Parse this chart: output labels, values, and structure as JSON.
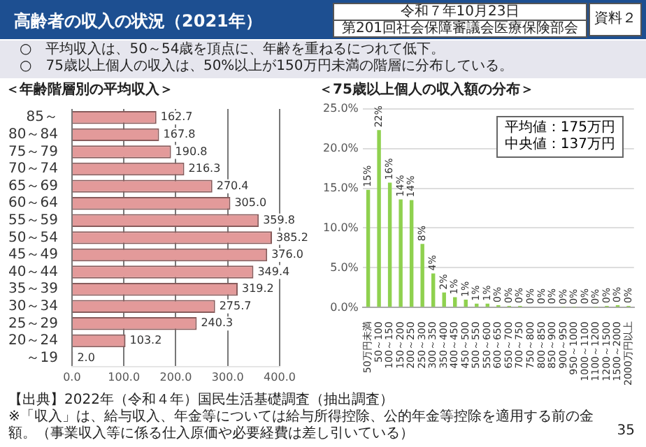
{
  "chart_data": [
    {
      "type": "bar",
      "orientation": "horizontal",
      "title": "＜年齢階層別の平均収入＞",
      "categories": [
        "85～",
        "80～84",
        "75～79",
        "70～74",
        "65～69",
        "60～64",
        "55～59",
        "50～54",
        "45～49",
        "40～44",
        "35～39",
        "30～34",
        "25～29",
        "20～24",
        "～19"
      ],
      "values": [
        162.7,
        167.8,
        190.8,
        216.3,
        270.4,
        305.0,
        359.8,
        385.2,
        376.0,
        349.4,
        319.2,
        275.7,
        240.3,
        103.2,
        2.0
      ],
      "value_labels": [
        "162.7",
        "167.8",
        "190.8",
        "216.3",
        "270.4",
        "305.0",
        "359.8",
        "385.2",
        "376.0",
        "349.4",
        "319.2",
        "275.7",
        "240.3",
        "103.2",
        "2.0"
      ],
      "color": "#e39a9a",
      "xlim": [
        0,
        400
      ],
      "xticks": [
        {
          "value": 0,
          "label": "0.0"
        },
        {
          "value": 100,
          "label": "100.0"
        },
        {
          "value": 200,
          "label": "200.0"
        },
        {
          "value": 300,
          "label": "300.0"
        },
        {
          "value": 400,
          "label": "400.0"
        }
      ],
      "grid": "x",
      "annotations": [
        "高齢者の収入の状況（2021年）",
        "○　平均収入は、50～54歳を頂点に、年齢を重ねるにつれて低下。",
        "○　75歳以上個人の収入は、50%以上が150万円未満の階層に分布している。",
        "令和７年10月23日",
        "第201回社会保障審議会医療保険部会",
        "資料２",
        "【出典】2022年（令和４年）国民生活基礎調査（抽出調査）",
        "※「収入」は、給与収入、年金等については給与所得控除、公的年金等控除を適用する前の金額。（事業収入等に係る仕入原価や必要経費は差し引いている）",
        "35"
      ]
    },
    {
      "type": "bar",
      "title": "＜75歳以上個人の収入額の分布＞",
      "categories": [
        "50万円未満",
        "50～100",
        "100～150",
        "150～200",
        "200～250",
        "250～300",
        "300～350",
        "350～400",
        "400～450",
        "450～500",
        "500～550",
        "550～600",
        "600～650",
        "650～700",
        "700～750",
        "750～800",
        "800～850",
        "850～900",
        "900～950",
        "950～1000",
        "1000～1100",
        "1100～1200",
        "1200～1500",
        "1500～2000",
        "2000万円以上"
      ],
      "values": [
        14.8,
        22.3,
        15.7,
        13.6,
        13.5,
        8.0,
        4.3,
        1.9,
        1.3,
        1.0,
        0.5,
        0.5,
        0.3,
        0.2,
        0.2,
        0.1,
        0.1,
        0.1,
        0.05,
        0.05,
        0.1,
        0.05,
        0.2,
        0.3,
        0.2
      ],
      "value_labels": [
        "15%",
        "22%",
        "16%",
        "14%",
        "14%",
        "8%",
        "4%",
        "2%",
        "1%",
        "1%",
        "1%",
        "1%",
        "0%",
        "0%",
        "0%",
        "0%",
        "0%",
        "0%",
        "0%",
        "0%",
        "0%",
        "0%",
        "0%",
        "0%",
        "0%"
      ],
      "color": "#8fd14f",
      "ylim": [
        0,
        25
      ],
      "yticks": [
        {
          "value": 0,
          "label": "0.0%"
        },
        {
          "value": 5,
          "label": "5.0%"
        },
        {
          "value": 10,
          "label": "10.0%"
        },
        {
          "value": 15,
          "label": "15.0%"
        },
        {
          "value": 20,
          "label": "20.0%"
        },
        {
          "value": 25,
          "label": "25.0%"
        }
      ],
      "grid": "y",
      "annotations": [
        "平均値：175万円",
        "中央値：137万円"
      ]
    }
  ]
}
